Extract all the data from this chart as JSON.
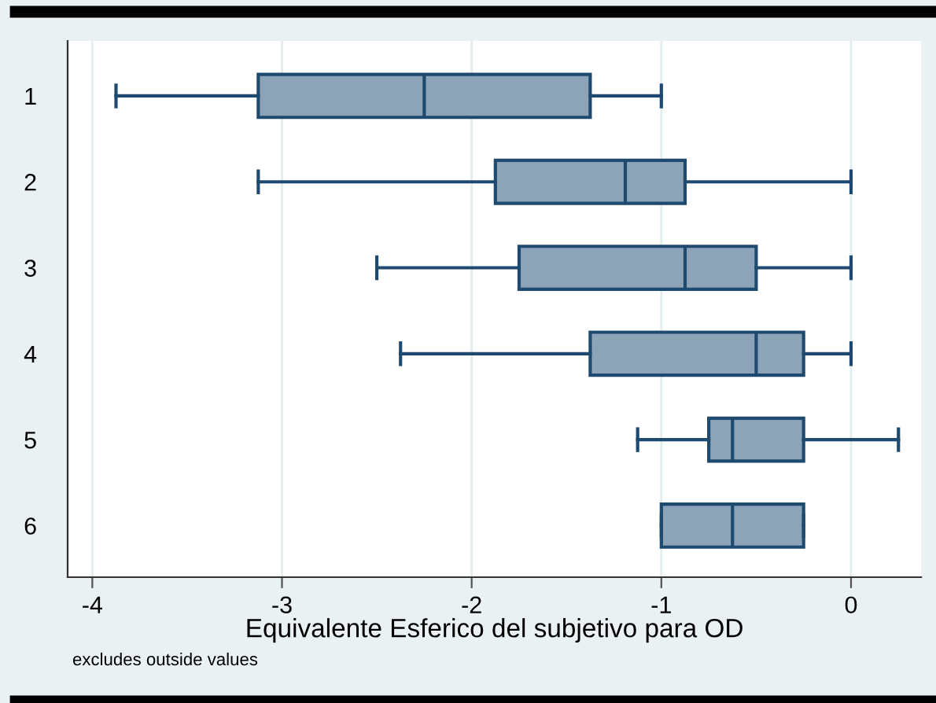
{
  "chart_data": {
    "type": "box",
    "orientation": "horizontal",
    "categories": [
      "1",
      "2",
      "3",
      "4",
      "5",
      "6"
    ],
    "series": [
      {
        "color": "#8ca3b8",
        "boxes": [
          {
            "low": -3.875,
            "q1": -3.125,
            "median": -2.25,
            "q3": -1.375,
            "high": -1.0
          },
          {
            "low": -3.125,
            "q1": -1.875,
            "median": -1.19,
            "q3": -0.875,
            "high": 0.0
          },
          {
            "low": -2.5,
            "q1": -1.75,
            "median": -0.875,
            "q3": -0.5,
            "high": 0.0
          },
          {
            "low": -2.375,
            "q1": -1.375,
            "median": -0.5,
            "q3": -0.25,
            "high": 0.0
          },
          {
            "low": -1.125,
            "q1": -0.75,
            "median": -0.625,
            "q3": -0.25,
            "high": 0.25
          },
          {
            "low": -1.0,
            "q1": -1.0,
            "median": -0.625,
            "q3": -0.25,
            "high": -0.25
          }
        ]
      }
    ],
    "xlim": [
      -4.13,
      0.37
    ],
    "xticks": [
      -4,
      -3,
      -2,
      -1,
      0
    ],
    "xlabel": "Equivalente Esferico del subjetivo para OD",
    "annotations": [
      "excludes outside values"
    ],
    "grid": "x",
    "legend": false
  }
}
